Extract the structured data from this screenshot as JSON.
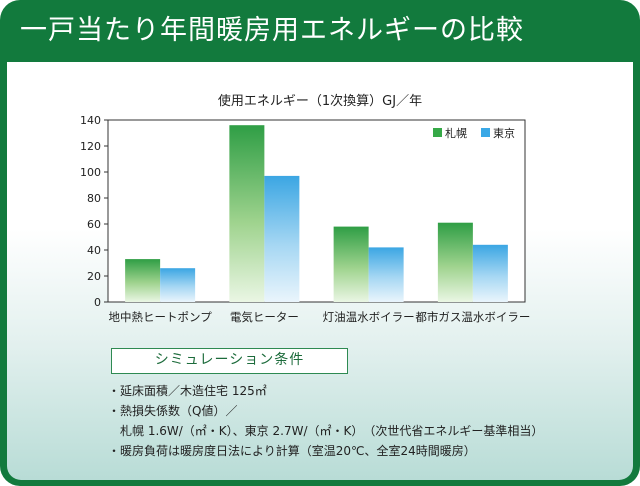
{
  "header": {
    "title": "一戸当たり年間暖房用エネルギーの比較"
  },
  "colors": {
    "sapporo": "#36a947",
    "tokyo": "#3aa8e6",
    "frame": "#127a3d"
  },
  "chart_data": {
    "type": "bar",
    "title": "使用エネルギー（1次換算）GJ／年",
    "categories": [
      "地中熱ヒートポンプ",
      "電気ヒーター",
      "灯油温水ボイラー",
      "都市ガス温水ボイラー"
    ],
    "series": [
      {
        "name": "札幌",
        "values": [
          33,
          136,
          58,
          61
        ]
      },
      {
        "name": "東京",
        "values": [
          26,
          97,
          42,
          44
        ]
      }
    ],
    "yticks": [
      "0",
      "20",
      "40",
      "60",
      "80",
      "100",
      "120",
      "140"
    ],
    "ylim": [
      0,
      140
    ],
    "grid": false,
    "legend": "top-right"
  },
  "conditions": {
    "title": "シミュレーション条件",
    "lines": [
      "・延床面積／木造住宅 125㎡",
      "・熱損失係数（Q値）／",
      "　札幌 1.6W/（㎡・K）、東京 2.7W/（㎡・K）　（次世代省エネルギー基準相当）",
      "・暖房負荷は暖房度日法により計算（室温20℃、全室24時間暖房）"
    ]
  }
}
